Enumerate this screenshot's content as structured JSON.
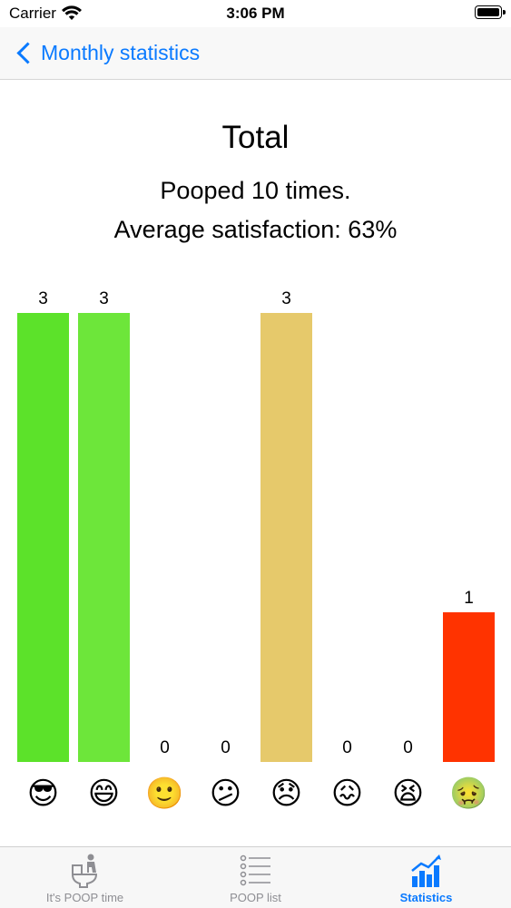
{
  "status_bar": {
    "carrier": "Carrier",
    "time": "3:06 PM"
  },
  "nav": {
    "back_label": "Monthly statistics"
  },
  "summary": {
    "title": "Total",
    "pooped_text": "Pooped 10 times.",
    "satisfaction_text": "Average satisfaction: 63%"
  },
  "chart_data": {
    "type": "bar",
    "categories": [
      "😎",
      "😄",
      "🙂",
      "😕",
      "😞",
      "😖",
      "😫",
      "🤢"
    ],
    "values": [
      3,
      3,
      0,
      0,
      3,
      0,
      0,
      1
    ],
    "colors": [
      "#5ce22a",
      "#6de63a",
      "#a6e04a",
      "#c9d865",
      "#e6c96b",
      "#f0a050",
      "#ff6a2a",
      "#ff3300"
    ],
    "ylim": [
      0,
      3
    ]
  },
  "tabs": [
    {
      "label": "It's POOP time",
      "icon": "toilet-person-icon",
      "active": false
    },
    {
      "label": "POOP list",
      "icon": "list-icon",
      "active": false
    },
    {
      "label": "Statistics",
      "icon": "chart-icon",
      "active": true
    }
  ]
}
